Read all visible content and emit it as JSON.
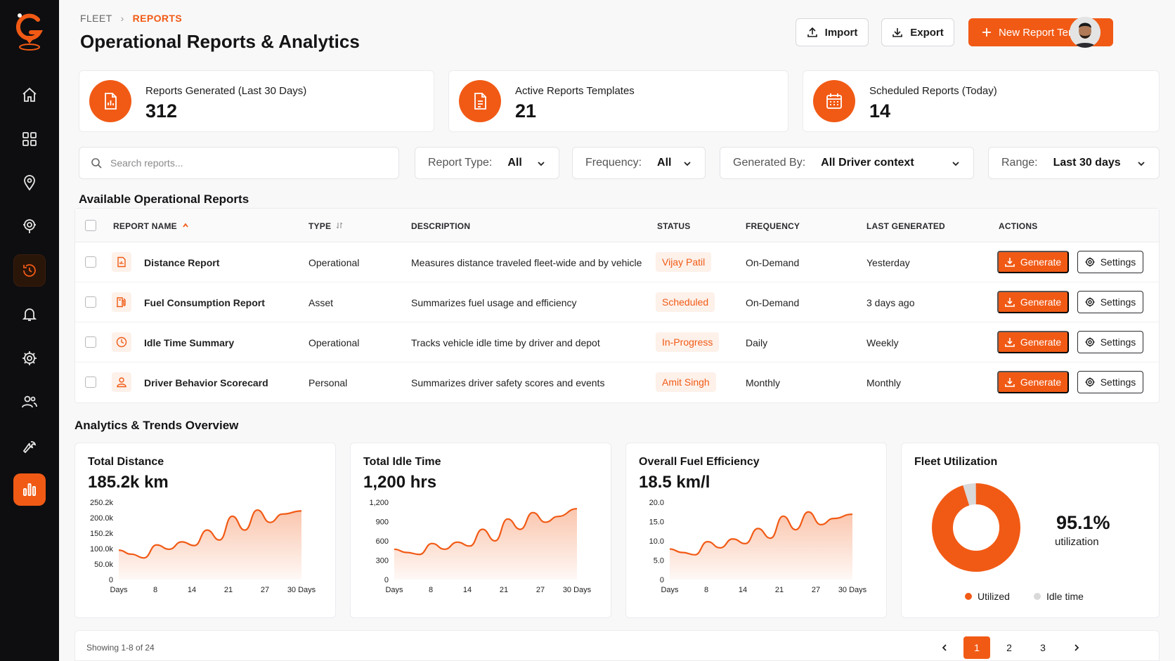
{
  "breadcrumb": {
    "parent": "FLEET",
    "separator": "›",
    "current": "REPORTS"
  },
  "page_title": "Operational Reports & Analytics",
  "toolbar": {
    "import_label": "Import",
    "export_label": "Export",
    "new_label": "New Report Template"
  },
  "stats": [
    {
      "label": "Reports Generated (Last 30 Days)",
      "value": "312",
      "icon": "report-icon"
    },
    {
      "label": "Active Reports Templates",
      "value": "21",
      "icon": "document-icon"
    },
    {
      "label": "Scheduled Reports (Today)",
      "value": "14",
      "icon": "calendar-icon"
    }
  ],
  "search": {
    "placeholder": "Search reports..."
  },
  "filters": [
    {
      "label": "Report Type:",
      "value": "All"
    },
    {
      "label": "Frequency:",
      "value": "All"
    },
    {
      "label": "Generated By:",
      "value": "All Driver context"
    },
    {
      "label": "Range:",
      "value": "Last 30 days"
    }
  ],
  "reports_section_title": "Available Operational Reports",
  "table": {
    "columns": [
      "REPORT NAME",
      "TYPE",
      "DESCRIPTION",
      "STATUS",
      "FREQUENCY",
      "LAST GENERATED",
      "ACTIONS"
    ],
    "generate_label": "Generate",
    "settings_label": "Settings",
    "rows": [
      {
        "name": "Distance Report",
        "type": "Operational",
        "description": "Measures distance traveled fleet-wide and by vehicle",
        "status": "Vijay Patil",
        "frequency": "On-Demand",
        "last_generated": "Yesterday",
        "icon": "report-icon"
      },
      {
        "name": "Fuel Consumption Report",
        "type": "Asset",
        "description": "Summarizes fuel usage and efficiency",
        "status": "Scheduled",
        "frequency": "On-Demand",
        "last_generated": "3 days ago",
        "icon": "fuel-icon"
      },
      {
        "name": "Idle Time Summary",
        "type": "Operational",
        "description": "Tracks vehicle idle time by driver and depot",
        "status": "In-Progress",
        "frequency": "Daily",
        "last_generated": "Weekly",
        "icon": "clock-icon"
      },
      {
        "name": "Driver Behavior Scorecard",
        "type": "Personal",
        "description": "Summarizes driver safety scores and events",
        "status": "Amit Singh",
        "frequency": "Monthly",
        "last_generated": "Monthly",
        "icon": "user-icon"
      }
    ]
  },
  "analytics_section_title": "Analytics & Trends Overview",
  "chart_data": [
    {
      "type": "area",
      "title": "Total Distance",
      "headline": "185.2k km",
      "x_ticks": [
        "Days",
        "8",
        "14",
        "21",
        "27",
        "30 Days"
      ],
      "y_ticks": [
        "250.2k",
        "200.0k",
        "150.2k",
        "100.0k",
        "50.0k",
        "0"
      ],
      "ylim": [
        0,
        250200
      ],
      "x": [
        1,
        3,
        5,
        7,
        9,
        11,
        13,
        15,
        17,
        19,
        21,
        23,
        25,
        27,
        30
      ],
      "values": [
        95000,
        82000,
        70000,
        112000,
        98000,
        122000,
        110000,
        160000,
        128000,
        205000,
        160000,
        225000,
        185000,
        212000,
        222000
      ]
    },
    {
      "type": "area",
      "title": "Total Idle Time",
      "headline": "1,200 hrs",
      "x_ticks": [
        "Days",
        "8",
        "14",
        "21",
        "27",
        "30 Days"
      ],
      "y_ticks": [
        "1,200",
        "900",
        "600",
        "300",
        "0"
      ],
      "ylim": [
        0,
        1200
      ],
      "x": [
        1,
        3,
        5,
        7,
        9,
        11,
        13,
        15,
        17,
        19,
        21,
        23,
        25,
        27,
        30
      ],
      "values": [
        470,
        420,
        390,
        560,
        470,
        580,
        520,
        780,
        600,
        940,
        780,
        1040,
        890,
        980,
        1100
      ]
    },
    {
      "type": "area",
      "title": "Overall Fuel Efficiency",
      "headline": "18.5 km/l",
      "x_ticks": [
        "Days",
        "8",
        "14",
        "21",
        "27",
        "30 Days"
      ],
      "y_ticks": [
        "20.0",
        "15.0",
        "10.0",
        "5.0",
        "0"
      ],
      "ylim": [
        0,
        20
      ],
      "x": [
        1,
        3,
        5,
        7,
        9,
        11,
        13,
        15,
        17,
        19,
        21,
        23,
        25,
        27,
        30
      ],
      "values": [
        7.9,
        7.0,
        6.4,
        9.8,
        8.2,
        10.5,
        9.3,
        13.2,
        10.7,
        16.4,
        12.9,
        17.5,
        14.2,
        15.8,
        16.9
      ]
    },
    {
      "type": "pie",
      "title": "Fleet Utilization",
      "percent_label": "95.1%",
      "caption": "utilization",
      "categories": [
        "Utilized",
        "Idle time"
      ],
      "values": [
        95.1,
        4.9
      ],
      "colors": [
        "#f15a15",
        "#d9d9d9"
      ]
    }
  ],
  "pagination": {
    "info": "Showing 1-8 of 24",
    "pages": [
      "1",
      "2",
      "3"
    ],
    "current": "1"
  },
  "colors": {
    "accent": "#f15a15",
    "sidebar": "#0e0e10"
  }
}
